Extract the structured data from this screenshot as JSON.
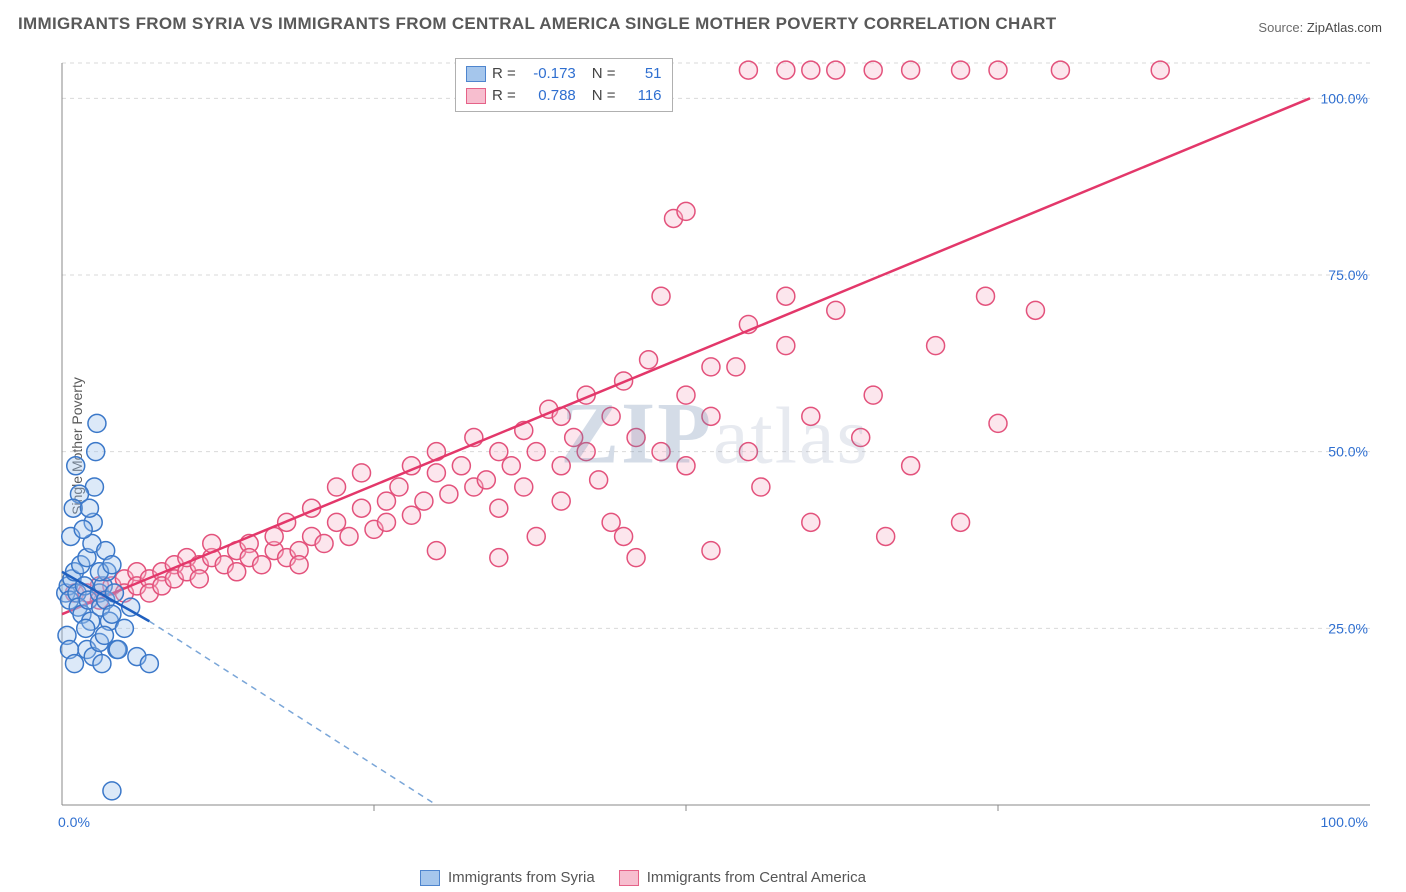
{
  "title": "IMMIGRANTS FROM SYRIA VS IMMIGRANTS FROM CENTRAL AMERICA SINGLE MOTHER POVERTY CORRELATION CHART",
  "source_label": "Source:",
  "source_value": "ZipAtlas.com",
  "watermark": "ZIPatlas",
  "chart": {
    "type": "scatter",
    "ylabel": "Single Mother Poverty",
    "background_color": "#ffffff",
    "grid_color": "#d9d9d9",
    "axis_color": "#888888",
    "tick_color": "#2f6fd0",
    "xlim": [
      0,
      100
    ],
    "ylim": [
      0,
      105
    ],
    "x_ticks": [
      {
        "v": 0,
        "label": "0.0%"
      },
      {
        "v": 100,
        "label": "100.0%"
      }
    ],
    "y_ticks": [
      {
        "v": 25,
        "label": "25.0%"
      },
      {
        "v": 50,
        "label": "50.0%"
      },
      {
        "v": 75,
        "label": "75.0%"
      },
      {
        "v": 100,
        "label": "100.0%"
      }
    ],
    "x_minor_ticks": [
      25,
      50,
      75
    ],
    "marker_radius": 9,
    "marker_stroke_width": 1.5,
    "fill_opacity": 0.35,
    "series": [
      {
        "id": "syria",
        "label": "Immigrants from Syria",
        "color_stroke": "#3b78c9",
        "color_fill": "#9cc0ea",
        "R": "-0.173",
        "N": "51",
        "trend": {
          "x1": 0,
          "y1": 33,
          "x2": 7,
          "y2": 26,
          "extrap_x2": 30,
          "extrap_y2": 0,
          "solid_color": "#1f5fbf",
          "dash_color": "#7aa6d8"
        },
        "points": [
          [
            0.3,
            30
          ],
          [
            0.5,
            31
          ],
          [
            0.6,
            29
          ],
          [
            0.8,
            32
          ],
          [
            1.0,
            33
          ],
          [
            1.2,
            30
          ],
          [
            1.3,
            28
          ],
          [
            1.5,
            34
          ],
          [
            1.6,
            27
          ],
          [
            1.8,
            31
          ],
          [
            2.0,
            35
          ],
          [
            2.1,
            29
          ],
          [
            2.3,
            26
          ],
          [
            2.4,
            37
          ],
          [
            2.5,
            40
          ],
          [
            2.6,
            45
          ],
          [
            2.7,
            50
          ],
          [
            2.8,
            54
          ],
          [
            1.1,
            48
          ],
          [
            1.4,
            44
          ],
          [
            0.9,
            42
          ],
          [
            0.7,
            38
          ],
          [
            1.7,
            39
          ],
          [
            2.2,
            42
          ],
          [
            3.0,
            30
          ],
          [
            3.1,
            28
          ],
          [
            3.3,
            31
          ],
          [
            3.5,
            29
          ],
          [
            3.6,
            33
          ],
          [
            3.8,
            26
          ],
          [
            4.0,
            27
          ],
          [
            4.2,
            30
          ],
          [
            4.4,
            22
          ],
          [
            0.4,
            24
          ],
          [
            0.6,
            22
          ],
          [
            1.9,
            25
          ],
          [
            2.0,
            22
          ],
          [
            2.5,
            21
          ],
          [
            3.0,
            23
          ],
          [
            3.2,
            20
          ],
          [
            3.4,
            24
          ],
          [
            1.0,
            20
          ],
          [
            4.5,
            22
          ],
          [
            5.0,
            25
          ],
          [
            5.5,
            28
          ],
          [
            6.0,
            21
          ],
          [
            7.0,
            20
          ],
          [
            3.0,
            33
          ],
          [
            3.5,
            36
          ],
          [
            4.0,
            2
          ],
          [
            4.0,
            34
          ]
        ]
      },
      {
        "id": "central_america",
        "label": "Immigrants from Central America",
        "color_stroke": "#e3527c",
        "color_fill": "#f7b8ca",
        "R": "0.788",
        "N": "116",
        "trend": {
          "x1": 0,
          "y1": 27,
          "x2": 100,
          "y2": 100,
          "solid_color": "#e3376a"
        },
        "points": [
          [
            1,
            30
          ],
          [
            2,
            30
          ],
          [
            3,
            31
          ],
          [
            3,
            29
          ],
          [
            4,
            31
          ],
          [
            5,
            32
          ],
          [
            5,
            30
          ],
          [
            6,
            33
          ],
          [
            6,
            31
          ],
          [
            7,
            32
          ],
          [
            7,
            30
          ],
          [
            8,
            33
          ],
          [
            8,
            31
          ],
          [
            9,
            34
          ],
          [
            9,
            32
          ],
          [
            10,
            33
          ],
          [
            10,
            35
          ],
          [
            11,
            34
          ],
          [
            11,
            32
          ],
          [
            12,
            35
          ],
          [
            12,
            37
          ],
          [
            13,
            34
          ],
          [
            14,
            36
          ],
          [
            14,
            33
          ],
          [
            15,
            37
          ],
          [
            15,
            35
          ],
          [
            16,
            34
          ],
          [
            17,
            36
          ],
          [
            17,
            38
          ],
          [
            18,
            35
          ],
          [
            18,
            40
          ],
          [
            19,
            36
          ],
          [
            19,
            34
          ],
          [
            20,
            38
          ],
          [
            20,
            42
          ],
          [
            21,
            37
          ],
          [
            22,
            40
          ],
          [
            22,
            45
          ],
          [
            23,
            38
          ],
          [
            24,
            42
          ],
          [
            24,
            47
          ],
          [
            25,
            39
          ],
          [
            26,
            43
          ],
          [
            26,
            40
          ],
          [
            27,
            45
          ],
          [
            28,
            41
          ],
          [
            28,
            48
          ],
          [
            29,
            43
          ],
          [
            30,
            47
          ],
          [
            30,
            50
          ],
          [
            31,
            44
          ],
          [
            32,
            48
          ],
          [
            33,
            45
          ],
          [
            33,
            52
          ],
          [
            34,
            46
          ],
          [
            35,
            50
          ],
          [
            35,
            42
          ],
          [
            36,
            48
          ],
          [
            37,
            53
          ],
          [
            37,
            45
          ],
          [
            38,
            50
          ],
          [
            39,
            56
          ],
          [
            40,
            48
          ],
          [
            40,
            43
          ],
          [
            41,
            52
          ],
          [
            42,
            50
          ],
          [
            42,
            58
          ],
          [
            43,
            46
          ],
          [
            44,
            55
          ],
          [
            45,
            60
          ],
          [
            45,
            38
          ],
          [
            46,
            52
          ],
          [
            47,
            63
          ],
          [
            48,
            50
          ],
          [
            48,
            72
          ],
          [
            49,
            83
          ],
          [
            50,
            58
          ],
          [
            50,
            84
          ],
          [
            52,
            55
          ],
          [
            52,
            36
          ],
          [
            54,
            62
          ],
          [
            55,
            68
          ],
          [
            55,
            50
          ],
          [
            56,
            45
          ],
          [
            58,
            65
          ],
          [
            58,
            72
          ],
          [
            60,
            55
          ],
          [
            60,
            40
          ],
          [
            62,
            70
          ],
          [
            64,
            52
          ],
          [
            65,
            58
          ],
          [
            66,
            38
          ],
          [
            68,
            48
          ],
          [
            70,
            65
          ],
          [
            72,
            40
          ],
          [
            74,
            72
          ],
          [
            75,
            54
          ],
          [
            78,
            70
          ],
          [
            60,
            104
          ],
          [
            62,
            104
          ],
          [
            65,
            104
          ],
          [
            68,
            104
          ],
          [
            72,
            104
          ],
          [
            75,
            104
          ],
          [
            80,
            104
          ],
          [
            88,
            104
          ],
          [
            55,
            104
          ],
          [
            58,
            104
          ],
          [
            44,
            40
          ],
          [
            46,
            35
          ],
          [
            50,
            48
          ],
          [
            52,
            62
          ],
          [
            30,
            36
          ],
          [
            35,
            35
          ],
          [
            38,
            38
          ],
          [
            40,
            55
          ]
        ]
      }
    ],
    "bottom_legend": [
      {
        "series": "syria"
      },
      {
        "series": "central_america"
      }
    ]
  }
}
